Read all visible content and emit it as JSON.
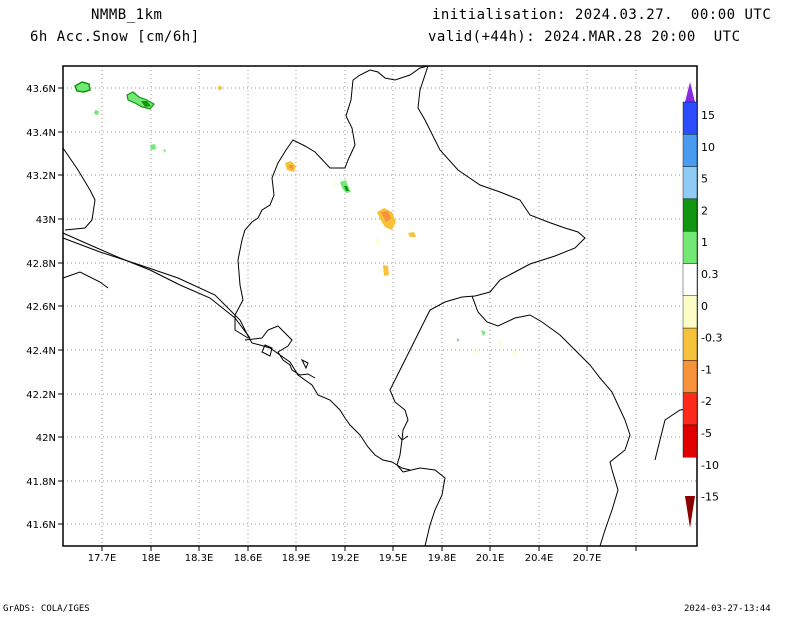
{
  "header": {
    "model": "NMMB_1km",
    "field": "6h Acc.Snow [cm/6h]",
    "init": "initialisation: 2024.03.27.  00:00 UTC",
    "valid": "valid(+44h): 2024.MAR.28 20:00  UTC"
  },
  "footer": {
    "left": "GrADS: COLA/IGES",
    "right": "2024-03-27-13:44"
  },
  "axes": {
    "lat_labels": [
      "43.6N",
      "43.4N",
      "43.2N",
      "43N",
      "42.8N",
      "42.6N",
      "42.4N",
      "42.2N",
      "42N",
      "41.8N",
      "41.6N"
    ],
    "lon_labels": [
      "17.7E",
      "18E",
      "18.3E",
      "18.6E",
      "18.9E",
      "19.2E",
      "19.5E",
      "19.8E",
      "20.1E",
      "20.4E",
      "20.7E"
    ]
  },
  "colorbar": {
    "labels": [
      "15",
      "10",
      "5",
      "2",
      "1",
      "0.3",
      "0",
      "-0.3",
      "-1",
      "-2",
      "-5",
      "-10",
      "-15"
    ],
    "colors": [
      "#8a2be2",
      "#2b4dff",
      "#4a9cf0",
      "#8ecbf5",
      "#119611",
      "#74e874",
      "#ffffff",
      "#fdfdc8",
      "#f6c23a",
      "#f6923a",
      "#ff2a1a",
      "#e00000",
      "#8b0000"
    ]
  }
}
